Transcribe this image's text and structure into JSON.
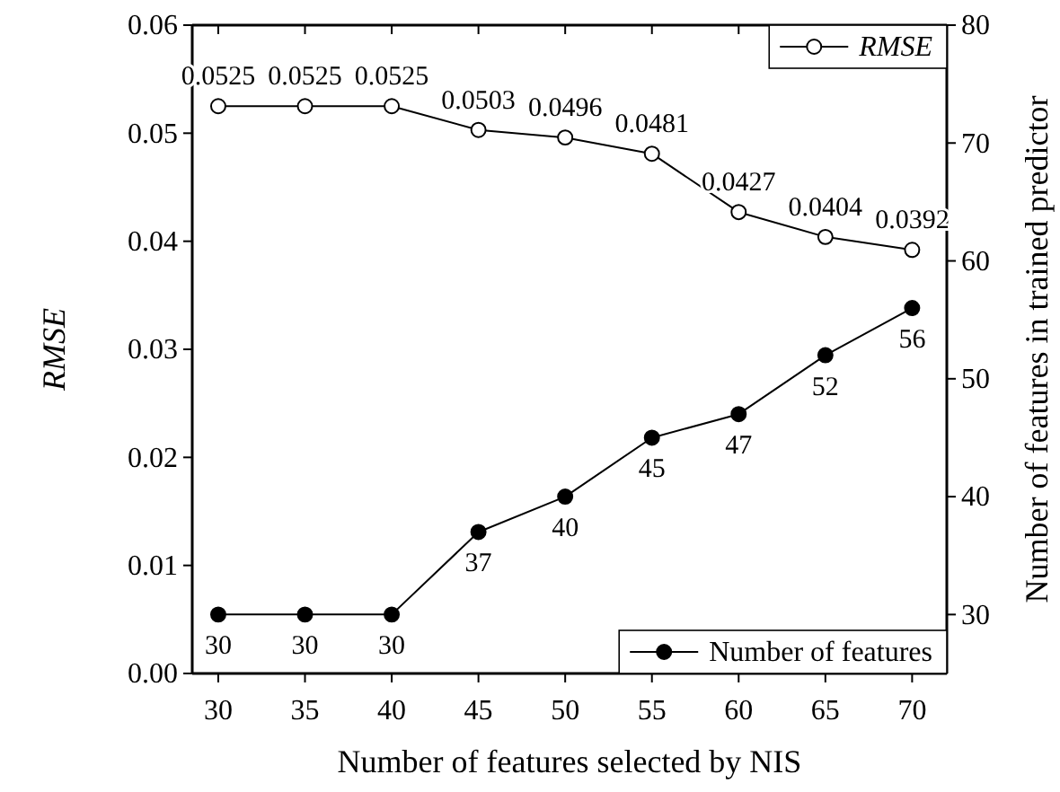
{
  "chart_data": {
    "type": "line",
    "xlabel": "Number of features selected by NIS",
    "ylabel": "RMSE",
    "y2label": "Number of features in trained predictor",
    "x": [
      30,
      35,
      40,
      45,
      50,
      55,
      60,
      65,
      70
    ],
    "series": [
      {
        "name": "RMSE",
        "color": "#000000",
        "values": [
          0.0525,
          0.0525,
          0.0525,
          0.0503,
          0.0496,
          0.0481,
          0.0427,
          0.0404,
          0.0392
        ]
      },
      {
        "name": "Number of features",
        "color": "#000000",
        "axis": "y2",
        "values": [
          30,
          30,
          30,
          37,
          40,
          45,
          47,
          52,
          56
        ]
      }
    ],
    "xlim": [
      28.5,
      72
    ],
    "xticks": [
      30,
      35,
      40,
      45,
      50,
      55,
      60,
      65,
      70
    ],
    "ylim": [
      0,
      0.06
    ],
    "yticks": [
      {
        "value": 0,
        "label": "0.00"
      },
      {
        "value": 0.01,
        "label": "0.01"
      },
      {
        "value": 0.02,
        "label": "0.02"
      },
      {
        "value": 0.03,
        "label": "0.03"
      },
      {
        "value": 0.04,
        "label": "0.04"
      },
      {
        "value": 0.05,
        "label": "0.05"
      },
      {
        "value": 0.06,
        "label": "0.06"
      }
    ],
    "y2lim": [
      25,
      80
    ],
    "y2ticks": [
      30,
      40,
      50,
      60,
      70,
      80
    ],
    "marker": "circle",
    "line_style": "solid",
    "data_labels": true,
    "grid": false,
    "legend": "right"
  }
}
